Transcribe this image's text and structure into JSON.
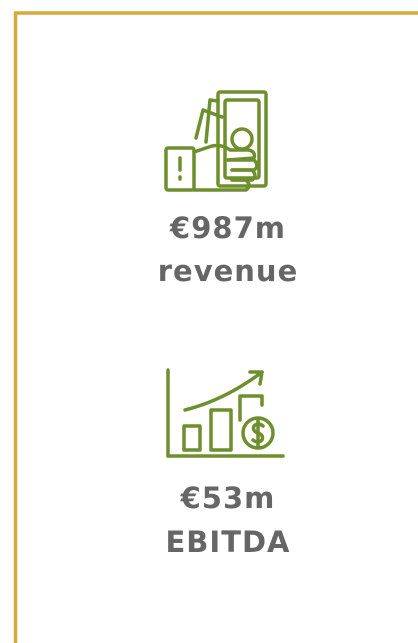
{
  "items": [
    {
      "value": "€987m",
      "label": "revenue"
    },
    {
      "value": "€53m",
      "label": "EBITDA"
    }
  ]
}
